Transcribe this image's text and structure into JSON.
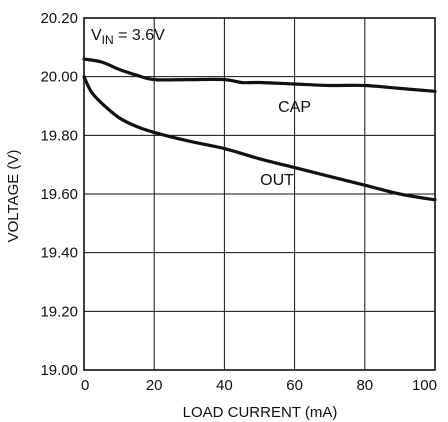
{
  "chart_data": {
    "type": "line",
    "title": "",
    "xlabel": "LOAD CURRENT (mA)",
    "ylabel": "VOLTAGE (V)",
    "xlim": [
      0,
      100
    ],
    "ylim": [
      19.0,
      20.2
    ],
    "x_ticks": [
      "0",
      "20",
      "40",
      "60",
      "80",
      "100"
    ],
    "y_ticks": [
      "19.00",
      "19.20",
      "19.40",
      "19.60",
      "19.80",
      "20.00",
      "20.20"
    ],
    "grid": true,
    "legend": "none",
    "annotation": {
      "main": "V",
      "sub": "IN",
      "rest": " = 3.6V"
    },
    "series": [
      {
        "name": "CAP",
        "x": [
          0,
          5,
          10,
          15,
          20,
          30,
          40,
          45,
          50,
          60,
          70,
          80,
          90,
          100
        ],
        "y": [
          20.06,
          20.05,
          20.025,
          20.005,
          19.99,
          19.99,
          19.99,
          19.98,
          19.98,
          19.975,
          19.97,
          19.97,
          19.96,
          19.95
        ]
      },
      {
        "name": "OUT",
        "x": [
          0,
          2,
          5,
          10,
          15,
          20,
          30,
          40,
          50,
          60,
          70,
          80,
          90,
          100
        ],
        "y": [
          20.0,
          19.95,
          19.91,
          19.86,
          19.83,
          19.81,
          19.78,
          19.755,
          19.72,
          19.69,
          19.66,
          19.63,
          19.6,
          19.58
        ]
      }
    ],
    "colors": {
      "line": "#111111",
      "grid": "#111111",
      "background": "#ffffff"
    }
  }
}
